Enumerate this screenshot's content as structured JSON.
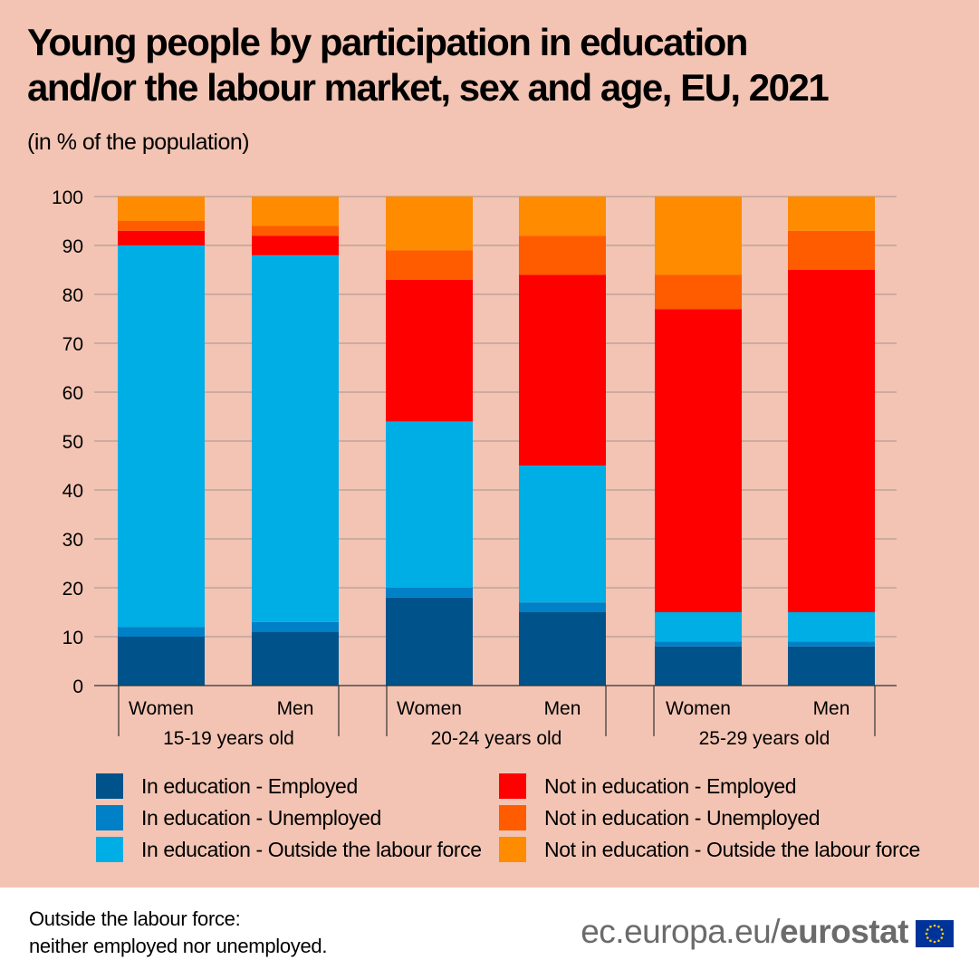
{
  "title_line1": "Young people by participation in education",
  "title_line2": "and/or the labour market, sex and age, EU, 2021",
  "subtitle": "(in % of the population)",
  "legend": [
    {
      "label": "In education - Employed",
      "color": "#00538a"
    },
    {
      "label": "In education - Unemployed",
      "color": "#0080c6"
    },
    {
      "label": "In education - Outside the labour force",
      "color": "#00aee6"
    },
    {
      "label": "Not in education - Employed",
      "color": "#ff0000"
    },
    {
      "label": "Not in education - Unemployed",
      "color": "#ff5c00"
    },
    {
      "label": "Not in education - Outside the labour force",
      "color": "#ff8b00"
    }
  ],
  "footnote_line1": "Outside the labour force:",
  "footnote_line2": "neither employed nor unemployed.",
  "brand_prefix": "ec.europa.eu/",
  "brand_name": "eurostat",
  "chart_data": {
    "type": "bar",
    "stacked": true,
    "title": "Young people by participation in education and/or the labour market, sex and age, EU, 2021",
    "ylabel": "(in % of the population)",
    "ylim": [
      0,
      100
    ],
    "yticks": [
      0,
      10,
      20,
      30,
      40,
      50,
      60,
      70,
      80,
      90,
      100
    ],
    "grid": true,
    "groups": [
      "15-19 years old",
      "20-24 years old",
      "25-29 years old"
    ],
    "categories": [
      "Women",
      "Men",
      "Women",
      "Men",
      "Women",
      "Men"
    ],
    "category_groups": [
      0,
      0,
      1,
      1,
      2,
      2
    ],
    "series": [
      {
        "name": "In education - Employed",
        "values": [
          10,
          11,
          18,
          15,
          8,
          8
        ]
      },
      {
        "name": "In education - Unemployed",
        "values": [
          2,
          2,
          2,
          2,
          1,
          1
        ]
      },
      {
        "name": "In education - Outside the labour force",
        "values": [
          78,
          75,
          34,
          28,
          6,
          6
        ]
      },
      {
        "name": "Not in education - Employed",
        "values": [
          3,
          4,
          29,
          39,
          62,
          70
        ]
      },
      {
        "name": "Not in education - Unemployed",
        "values": [
          2,
          2,
          6,
          8,
          7,
          8
        ]
      },
      {
        "name": "Not in education - Outside the labour force",
        "values": [
          5,
          6,
          11,
          8,
          16,
          7
        ]
      }
    ]
  }
}
